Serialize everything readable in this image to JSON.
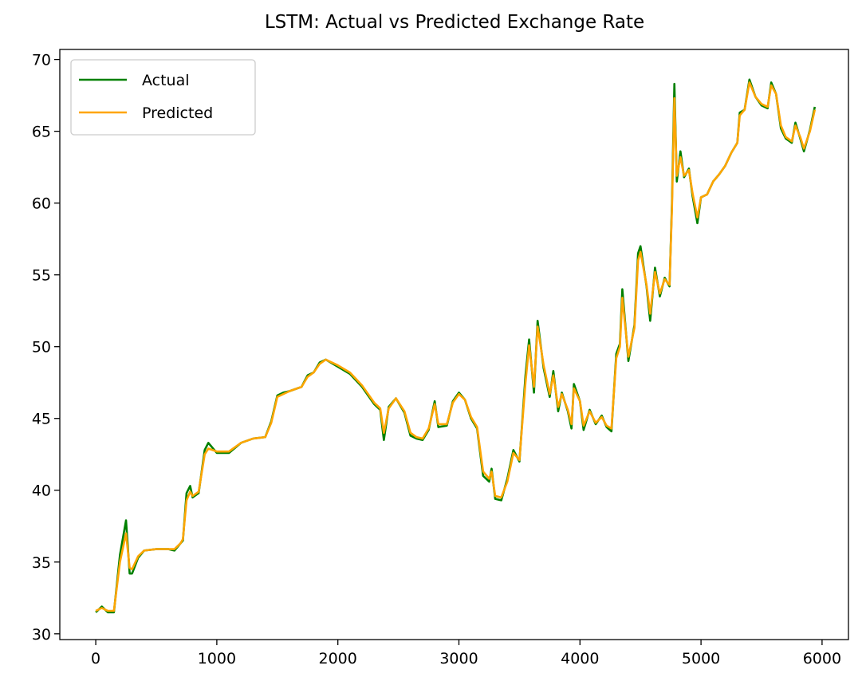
{
  "chart_data": {
    "type": "line",
    "title": "LSTM: Actual vs Predicted Exchange Rate",
    "x": [
      0,
      50,
      100,
      150,
      200,
      250,
      280,
      300,
      350,
      400,
      500,
      600,
      650,
      700,
      720,
      750,
      780,
      800,
      850,
      900,
      930,
      1000,
      1100,
      1200,
      1300,
      1400,
      1450,
      1500,
      1550,
      1600,
      1700,
      1750,
      1800,
      1850,
      1900,
      2000,
      2100,
      2200,
      2300,
      2350,
      2380,
      2420,
      2480,
      2550,
      2600,
      2650,
      2700,
      2750,
      2800,
      2830,
      2900,
      2950,
      3000,
      3050,
      3100,
      3150,
      3200,
      3250,
      3270,
      3300,
      3350,
      3400,
      3450,
      3500,
      3550,
      3580,
      3620,
      3650,
      3700,
      3750,
      3780,
      3820,
      3850,
      3900,
      3930,
      3950,
      4000,
      4030,
      4080,
      4130,
      4180,
      4220,
      4260,
      4300,
      4330,
      4350,
      4400,
      4450,
      4480,
      4500,
      4550,
      4580,
      4620,
      4660,
      4700,
      4740,
      4760,
      4780,
      4800,
      4830,
      4860,
      4900,
      4930,
      4970,
      5000,
      5050,
      5100,
      5150,
      5200,
      5250,
      5300,
      5320,
      5360,
      5400,
      5450,
      5500,
      5550,
      5580,
      5620,
      5660,
      5700,
      5750,
      5780,
      5820,
      5850,
      5900,
      5940
    ],
    "series": [
      {
        "name": "Actual",
        "color": "#008000",
        "values": [
          31.5,
          31.9,
          31.5,
          31.5,
          35.5,
          37.9,
          34.2,
          34.2,
          35.3,
          35.8,
          35.9,
          35.9,
          35.8,
          36.3,
          36.5,
          39.8,
          40.3,
          39.5,
          39.8,
          42.8,
          43.3,
          42.6,
          42.6,
          43.3,
          43.6,
          43.7,
          44.8,
          46.6,
          46.8,
          46.9,
          47.2,
          48.0,
          48.2,
          48.9,
          49.1,
          48.6,
          48.1,
          47.2,
          46.0,
          45.6,
          43.5,
          45.8,
          46.4,
          45.4,
          43.8,
          43.6,
          43.5,
          44.2,
          46.2,
          44.4,
          44.5,
          46.2,
          46.8,
          46.3,
          45.0,
          44.3,
          41.0,
          40.6,
          41.5,
          39.4,
          39.3,
          40.8,
          42.8,
          42.0,
          48.0,
          50.5,
          46.8,
          51.8,
          48.5,
          46.5,
          48.3,
          45.5,
          46.8,
          45.5,
          44.3,
          47.4,
          46.2,
          44.2,
          45.6,
          44.6,
          45.2,
          44.4,
          44.1,
          49.5,
          50.2,
          54.0,
          49.0,
          51.5,
          56.5,
          57.0,
          54.2,
          51.8,
          55.5,
          53.5,
          54.8,
          54.2,
          60.0,
          68.3,
          61.5,
          63.6,
          61.8,
          62.4,
          60.5,
          58.6,
          60.4,
          60.6,
          61.5,
          62.0,
          62.6,
          63.5,
          64.2,
          66.3,
          66.5,
          68.6,
          67.4,
          66.8,
          66.6,
          68.4,
          67.6,
          65.2,
          64.5,
          64.2,
          65.6,
          64.5,
          63.6,
          65.1,
          66.7
        ]
      },
      {
        "name": "Predicted",
        "color": "#ffa500",
        "values": [
          31.6,
          31.8,
          31.6,
          31.6,
          35.0,
          37.0,
          34.6,
          34.5,
          35.4,
          35.8,
          35.9,
          35.9,
          35.9,
          36.3,
          36.6,
          39.3,
          39.9,
          39.6,
          39.9,
          42.5,
          42.9,
          42.7,
          42.7,
          43.3,
          43.6,
          43.7,
          44.7,
          46.5,
          46.7,
          46.9,
          47.2,
          47.9,
          48.2,
          48.8,
          49.1,
          48.7,
          48.2,
          47.3,
          46.1,
          45.7,
          44.0,
          45.7,
          46.4,
          45.5,
          44.0,
          43.7,
          43.6,
          44.3,
          46.0,
          44.6,
          44.6,
          46.1,
          46.7,
          46.3,
          45.1,
          44.4,
          41.3,
          40.8,
          41.3,
          39.6,
          39.5,
          40.6,
          42.6,
          42.1,
          47.5,
          50.1,
          47.2,
          51.4,
          48.7,
          46.7,
          48.0,
          45.8,
          46.7,
          45.6,
          44.6,
          47.1,
          46.2,
          44.5,
          45.5,
          44.7,
          45.1,
          44.5,
          44.3,
          49.2,
          50.0,
          53.4,
          49.3,
          51.3,
          56.0,
          56.6,
          54.3,
          52.3,
          55.2,
          53.7,
          54.7,
          54.3,
          59.6,
          67.3,
          61.9,
          63.2,
          61.9,
          62.3,
          60.7,
          59.0,
          60.4,
          60.6,
          61.5,
          62.0,
          62.6,
          63.5,
          64.2,
          66.1,
          66.5,
          68.4,
          67.4,
          66.9,
          66.7,
          68.2,
          67.6,
          65.4,
          64.6,
          64.3,
          65.4,
          64.6,
          63.8,
          65.0,
          66.5
        ]
      }
    ],
    "xlim": [
      -297,
      6218
    ],
    "ylim": [
      29.6,
      70.7
    ],
    "xticks": [
      0,
      1000,
      2000,
      3000,
      4000,
      5000,
      6000
    ],
    "yticks": [
      30,
      35,
      40,
      45,
      50,
      55,
      60,
      65,
      70
    ],
    "legend": "upper left",
    "grid": false
  }
}
